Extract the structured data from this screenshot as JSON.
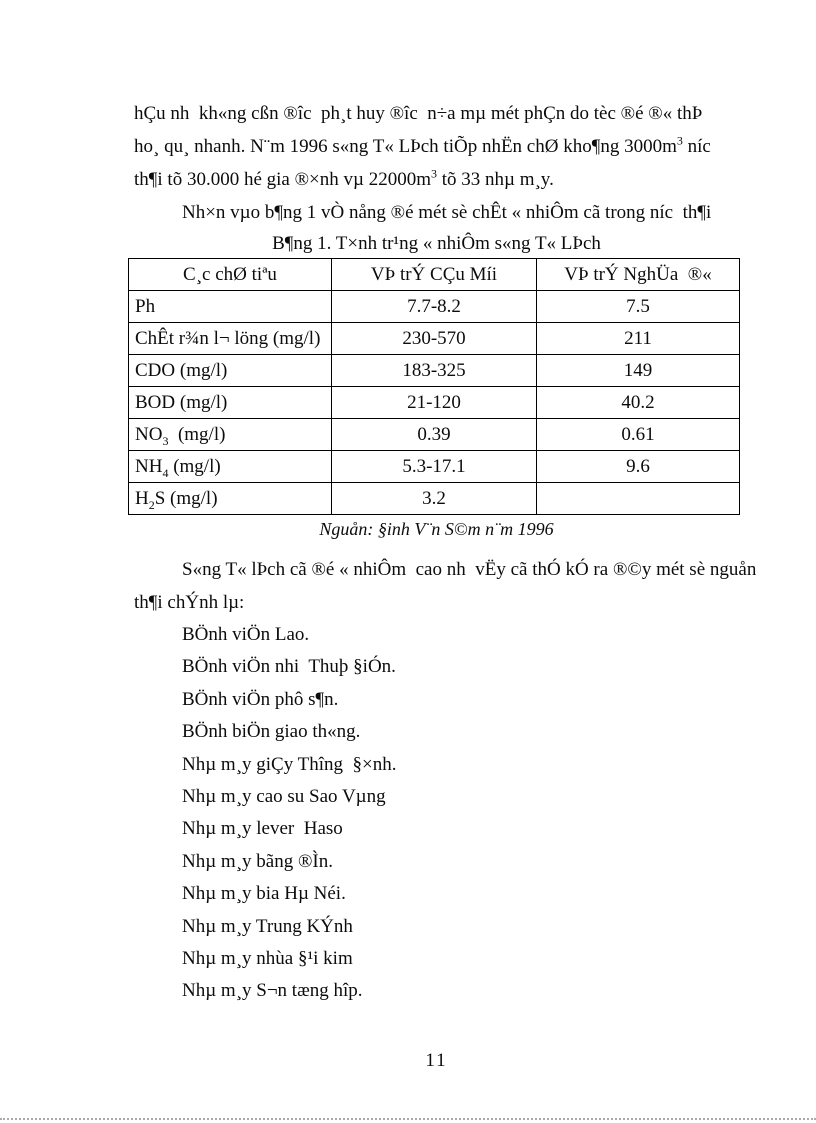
{
  "page": {
    "number": "11"
  },
  "para1": {
    "line1": "hÇu nh  kh«ng cßn ®îc  ph¸t huy ®îc  n÷a mµ mét phÇn do tèc ®é ®« thÞ",
    "line2_a": "ho¸ qu¸ nhanh. N¨m 1996 s«ng T« LÞch tiÕp nhËn chØ kho¶ng 3000m",
    "line2_sup": "3",
    "line2_b": " níc",
    "line3_a": "th¶i tõ 30.000 hé gia ®×nh vµ 22000m",
    "line3_sup": "3",
    "line3_b": " tõ 33 nhµ m¸y."
  },
  "para2": "Nh×n vµo b¶ng 1 vÒ nång ®é mét sè chÊt « nhiÔm cã trong níc  th¶i",
  "table_caption": "B¶ng 1. T×nh tr¹ng « nhiÔm s«ng T« LÞch",
  "table": {
    "headers": [
      "C¸c chØ tiªu",
      "VÞ trÝ CÇu Míi",
      "VÞ trÝ NghÜa  ®«"
    ],
    "rows": [
      {
        "p": "Ph",
        "sub": "",
        "ps": "",
        "v1": "7.7-8.2",
        "v2": "7.5"
      },
      {
        "p": "ChÊt r¾n l¬ löng (mg/l)",
        "sub": "",
        "ps": "",
        "v1": "230-570",
        "v2": "211"
      },
      {
        "p": "CDO (mg/l)",
        "sub": "",
        "ps": "",
        "v1": "183-325",
        "v2": "149"
      },
      {
        "p": "BOD (mg/l)",
        "sub": "",
        "ps": "",
        "v1": "21-120",
        "v2": "40.2"
      },
      {
        "p": "NO",
        "sub": "3",
        "ps": "  (mg/l)",
        "v1": "0.39",
        "v2": "0.61"
      },
      {
        "p": "NH",
        "sub": "4",
        "ps": " (mg/l)",
        "v1": "5.3-17.1",
        "v2": "9.6"
      },
      {
        "p": "H",
        "sub": "2",
        "ps": "S (mg/l)",
        "v1": "3.2",
        "v2": ""
      }
    ]
  },
  "source_note": "Nguån: §inh V¨n S©m n¨m 1996",
  "para3": {
    "line1": "S«ng T« lÞch cã ®é « nhiÔm  cao nh  vËy cã thÓ kÓ ra ®©y mét sè nguån",
    "line2": "th¶i chÝnh lµ:"
  },
  "list": [
    "BÖnh viÖn Lao.",
    "BÖnh viÖn nhi  Thuþ §iÓn.",
    "BÖnh viÖn phô s¶n.",
    "BÖnh biÖn giao th«ng.",
    "Nhµ m¸y giÇy Thîng  §×nh.",
    "Nhµ m¸y cao su Sao Vµng",
    "Nhµ m¸y lever  Haso",
    "Nhµ m¸y bãng ®Ìn.",
    "Nhµ m¸y bia Hµ Néi.",
    "Nhµ m¸y Trung KÝnh",
    "Nhµ m¸y nhùa §¹i kim",
    "Nhµ m¸y S¬n tæng hîp."
  ]
}
